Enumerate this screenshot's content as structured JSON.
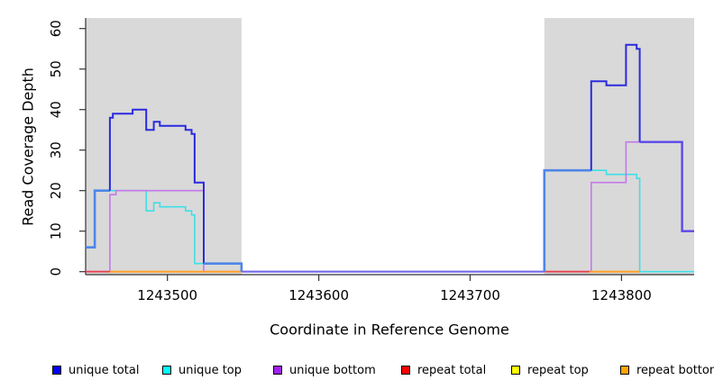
{
  "chart_data": {
    "type": "line",
    "title": "",
    "xlabel": "Coordinate in Reference Genome",
    "ylabel": "Read Coverage Depth",
    "x_ticks": [
      1243500,
      1243600,
      1243700,
      1243800
    ],
    "y_ticks": [
      0,
      10,
      20,
      30,
      40,
      50,
      60
    ],
    "xlim": [
      1243446,
      1243848
    ],
    "ylim": [
      0,
      62
    ],
    "grid": false,
    "shaded_regions": {
      "color": "#d9d9d9",
      "ranges": [
        [
          1243446,
          1243549
        ],
        [
          1243749,
          1243848
        ]
      ]
    },
    "legend": {
      "position": "bottom",
      "entries": [
        {
          "label": "unique total",
          "color": "#0000ff"
        },
        {
          "label": "unique top",
          "color": "#00ffff"
        },
        {
          "label": "unique bottom",
          "color": "#a020f0"
        },
        {
          "label": "repeat total",
          "color": "#ff0000"
        },
        {
          "label": "repeat top",
          "color": "#ffff00"
        },
        {
          "label": "repeat bottom",
          "color": "#ffa500"
        }
      ]
    },
    "series": [
      {
        "name": "repeat top",
        "runs": [
          {
            "color": "#ffe800",
            "width": 1.6,
            "points": [
              [
                1243462,
                0
              ],
              [
                1243812,
                0
              ]
            ]
          }
        ]
      },
      {
        "name": "unique top",
        "runs": [
          {
            "color": "#3fdfe6",
            "width": 1.6,
            "points": [
              [
                1243446,
                6
              ],
              [
                1243452,
                6
              ],
              [
                1243452,
                20
              ],
              [
                1243486,
                20
              ],
              [
                1243486,
                15
              ],
              [
                1243491,
                15
              ],
              [
                1243491,
                17
              ],
              [
                1243495,
                17
              ],
              [
                1243495,
                16
              ],
              [
                1243512,
                16
              ],
              [
                1243512,
                15
              ],
              [
                1243516,
                15
              ],
              [
                1243516,
                14
              ],
              [
                1243518,
                14
              ],
              [
                1243518,
                2
              ],
              [
                1243549,
                2
              ],
              [
                1243549,
                0
              ],
              [
                1243749,
                0
              ],
              [
                1243749,
                25
              ],
              [
                1243790,
                25
              ],
              [
                1243790,
                24
              ],
              [
                1243810,
                24
              ],
              [
                1243810,
                23
              ],
              [
                1243812,
                23
              ],
              [
                1243812,
                0
              ],
              [
                1243848,
                0
              ]
            ]
          }
        ]
      },
      {
        "name": "unique bottom",
        "runs": [
          {
            "color": "#c478e8",
            "width": 1.6,
            "points": [
              [
                1243446,
                0
              ],
              [
                1243462,
                0
              ],
              [
                1243462,
                19
              ],
              [
                1243466,
                19
              ],
              [
                1243466,
                20
              ],
              [
                1243524,
                20
              ],
              [
                1243524,
                0
              ],
              [
                1243780,
                0
              ],
              [
                1243780,
                22
              ],
              [
                1243803,
                22
              ],
              [
                1243803,
                32
              ],
              [
                1243840,
                32
              ],
              [
                1243840,
                10
              ],
              [
                1243848,
                10
              ]
            ]
          }
        ]
      },
      {
        "name": "repeat total",
        "runs": [
          {
            "color": "#e8414f",
            "width": 1.8,
            "points": [
              [
                1243446,
                0
              ],
              [
                1243462,
                0
              ]
            ]
          },
          {
            "color": "#e8414f",
            "width": 1.8,
            "points": [
              [
                1243749,
                0
              ],
              [
                1243779,
                0
              ]
            ]
          }
        ]
      },
      {
        "name": "repeat bottom",
        "runs": [
          {
            "color": "#ffa028",
            "width": 2.0,
            "points": [
              [
                1243462,
                0
              ],
              [
                1243549,
                0
              ]
            ]
          },
          {
            "color": "#ffa028",
            "width": 2.0,
            "points": [
              [
                1243779,
                0
              ],
              [
                1243812,
                0
              ]
            ]
          }
        ]
      },
      {
        "name": "unique total",
        "runs": [
          {
            "color": "#4d86e8",
            "width": 2.6,
            "points": [
              [
                1243446,
                6
              ],
              [
                1243452,
                6
              ],
              [
                1243452,
                20
              ],
              [
                1243462,
                20
              ]
            ]
          },
          {
            "color": "#2a2ae0",
            "width": 2.0,
            "points": [
              [
                1243462,
                20
              ],
              [
                1243462,
                38
              ],
              [
                1243464,
                38
              ],
              [
                1243464,
                39
              ],
              [
                1243477,
                39
              ],
              [
                1243477,
                40
              ],
              [
                1243486,
                40
              ],
              [
                1243486,
                35
              ],
              [
                1243491,
                35
              ],
              [
                1243491,
                37
              ],
              [
                1243495,
                37
              ],
              [
                1243495,
                36
              ],
              [
                1243512,
                36
              ],
              [
                1243512,
                35
              ],
              [
                1243516,
                35
              ],
              [
                1243516,
                34
              ],
              [
                1243518,
                34
              ],
              [
                1243518,
                22
              ],
              [
                1243524,
                22
              ],
              [
                1243524,
                2
              ]
            ]
          },
          {
            "color": "#4d86e8",
            "width": 2.6,
            "points": [
              [
                1243524,
                2
              ],
              [
                1243549,
                2
              ],
              [
                1243549,
                0
              ]
            ]
          },
          {
            "color": "#7468ec",
            "width": 2.2,
            "points": [
              [
                1243549,
                0
              ],
              [
                1243749,
                0
              ]
            ]
          },
          {
            "color": "#4d86e8",
            "width": 2.6,
            "points": [
              [
                1243749,
                0
              ],
              [
                1243749,
                25
              ],
              [
                1243780,
                25
              ]
            ]
          },
          {
            "color": "#2a2ae0",
            "width": 2.0,
            "points": [
              [
                1243780,
                25
              ],
              [
                1243780,
                47
              ],
              [
                1243790,
                47
              ],
              [
                1243790,
                46
              ],
              [
                1243803,
                46
              ],
              [
                1243803,
                56
              ],
              [
                1243810,
                56
              ],
              [
                1243810,
                55
              ],
              [
                1243812,
                55
              ],
              [
                1243812,
                32
              ]
            ]
          },
          {
            "color": "#5a48ec",
            "width": 2.4,
            "points": [
              [
                1243812,
                32
              ],
              [
                1243840,
                32
              ],
              [
                1243840,
                10
              ],
              [
                1243848,
                10
              ]
            ]
          }
        ]
      }
    ]
  }
}
